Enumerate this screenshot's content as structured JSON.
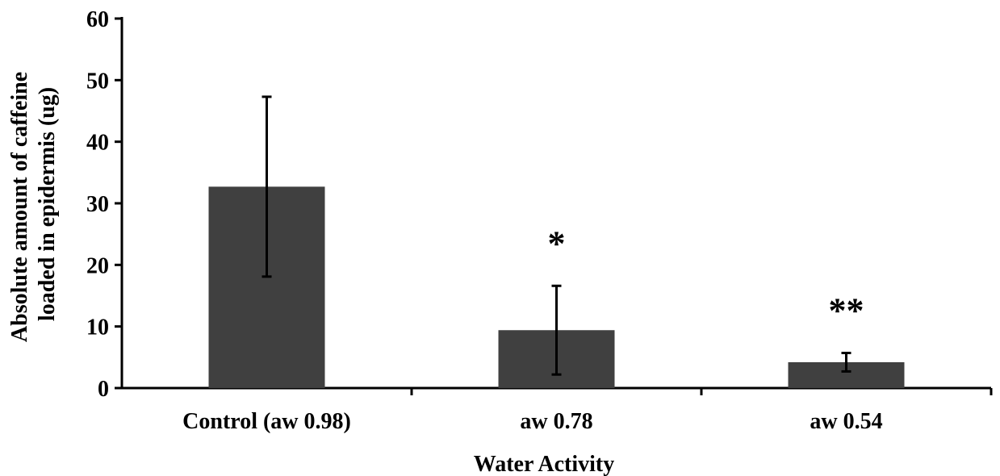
{
  "chart_data": {
    "type": "bar",
    "title": "",
    "xlabel": "Water Activity",
    "ylabel_lines": [
      "Absolute amount of caffeine",
      "loaded in epidermis (ug)"
    ],
    "categories": [
      "Control (aw 0.98)",
      "aw 0.78",
      "aw 0.54"
    ],
    "values": [
      32.7,
      9.4,
      4.2
    ],
    "error": [
      14.6,
      7.2,
      1.5
    ],
    "significance": [
      "",
      "*",
      "**"
    ],
    "ylim": [
      0,
      60
    ],
    "yticks": [
      0,
      10,
      20,
      30,
      40,
      50,
      60
    ],
    "bar_color": "#404040",
    "grid": false,
    "legend": "none"
  }
}
